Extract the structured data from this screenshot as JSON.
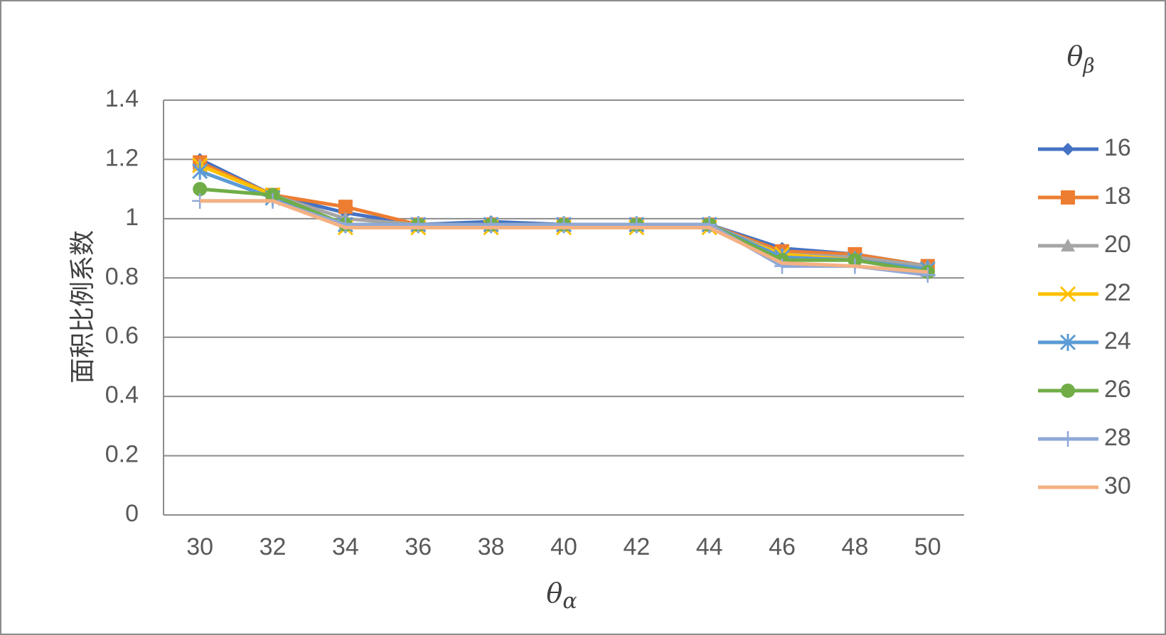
{
  "chart_data": {
    "type": "line",
    "title": "",
    "xlabel": "θα",
    "xlabel_parts": {
      "symbol": "θ",
      "sub": "α"
    },
    "ylabel": "面积比例系数",
    "legend_title": "θβ",
    "legend_title_parts": {
      "symbol": "θ",
      "sub": "β"
    },
    "legend_position": "right",
    "grid": "horizontal",
    "ylim": [
      0,
      1.4
    ],
    "yticks": [
      "0",
      "0.2",
      "0.4",
      "0.6",
      "0.8",
      "1",
      "1.2",
      "1.4"
    ],
    "x": [
      "30",
      "32",
      "34",
      "36",
      "38",
      "40",
      "42",
      "44",
      "46",
      "48",
      "50"
    ],
    "series": [
      {
        "name": "16",
        "color": "#4472c4",
        "marker": "diamond",
        "values": [
          1.2,
          1.08,
          1.02,
          0.98,
          0.99,
          0.98,
          0.98,
          0.98,
          0.9,
          0.88,
          0.84
        ]
      },
      {
        "name": "18",
        "color": "#ed7d31",
        "marker": "square",
        "values": [
          1.19,
          1.08,
          1.04,
          0.98,
          0.98,
          0.98,
          0.98,
          0.98,
          0.89,
          0.88,
          0.84
        ]
      },
      {
        "name": "20",
        "color": "#a5a5a5",
        "marker": "triangle",
        "values": [
          1.18,
          1.08,
          1.0,
          0.98,
          0.98,
          0.98,
          0.98,
          0.98,
          0.88,
          0.87,
          0.84
        ]
      },
      {
        "name": "22",
        "color": "#ffc000",
        "marker": "x",
        "values": [
          1.18,
          1.08,
          0.97,
          0.97,
          0.97,
          0.97,
          0.97,
          0.97,
          0.88,
          0.86,
          0.83
        ]
      },
      {
        "name": "24",
        "color": "#5b9bd5",
        "marker": "star",
        "values": [
          1.16,
          1.07,
          0.98,
          0.98,
          0.98,
          0.98,
          0.98,
          0.98,
          0.87,
          0.86,
          0.83
        ]
      },
      {
        "name": "26",
        "color": "#70ad47",
        "marker": "circle",
        "values": [
          1.1,
          1.08,
          0.98,
          0.98,
          0.98,
          0.98,
          0.98,
          0.98,
          0.86,
          0.86,
          0.82
        ]
      },
      {
        "name": "28",
        "color": "#8fa8d8",
        "marker": "plus",
        "values": [
          1.06,
          1.06,
          0.98,
          0.98,
          0.98,
          0.98,
          0.98,
          0.98,
          0.84,
          0.84,
          0.81
        ]
      },
      {
        "name": "30",
        "color": "#f4b183",
        "marker": "none",
        "values": [
          1.06,
          1.06,
          0.97,
          0.97,
          0.97,
          0.97,
          0.97,
          0.97,
          0.85,
          0.84,
          0.82
        ]
      }
    ]
  }
}
